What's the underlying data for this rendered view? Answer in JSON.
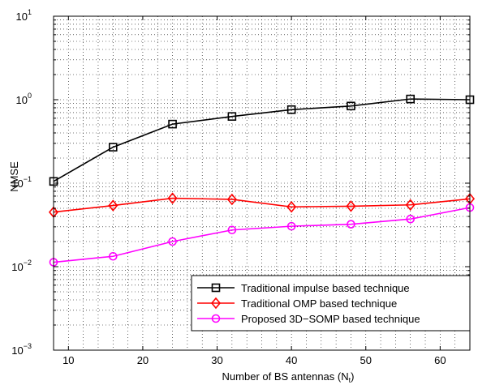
{
  "chart_data": {
    "type": "line",
    "title": "",
    "xlabel": "Number of BS antennas (N",
    "xlabel_sub": "t",
    "xlabel_close": ")",
    "ylabel": "NMSE",
    "xlim": [
      8,
      64
    ],
    "ylim": [
      0.001,
      10
    ],
    "y_scale": "log",
    "grid": "on (dotted, major and minor)",
    "legend_position": "bottom-right",
    "x_ticks": [
      10,
      20,
      30,
      40,
      50,
      60
    ],
    "x_tick_labels": [
      "10",
      "20",
      "30",
      "40",
      "50",
      "60"
    ],
    "y_tick_labels": [
      {
        "base": "10",
        "exp": "1"
      },
      {
        "base": "10",
        "exp": "0"
      },
      {
        "base": "10",
        "exp": "−1"
      },
      {
        "base": "10",
        "exp": "−2"
      },
      {
        "base": "10",
        "exp": "−3"
      }
    ],
    "y_tick_values": [
      10,
      1,
      0.1,
      0.01,
      0.001
    ],
    "x": [
      8,
      16,
      24,
      32,
      40,
      48,
      56,
      64
    ],
    "series": [
      {
        "name": "Traditional impulse based technique",
        "color": "#000000",
        "marker": "square",
        "values": [
          0.105,
          0.27,
          0.51,
          0.63,
          0.76,
          0.84,
          1.02,
          1.0
        ]
      },
      {
        "name": "Traditional OMP based technique",
        "color": "#ff0000",
        "marker": "diamond",
        "values": [
          0.045,
          0.054,
          0.066,
          0.064,
          0.052,
          0.053,
          0.055,
          0.065
        ]
      },
      {
        "name": "Proposed 3D−SOMP based technique",
        "color": "#ff00ff",
        "marker": "circle",
        "values": [
          0.0113,
          0.0133,
          0.02,
          0.0275,
          0.0305,
          0.0322,
          0.0372,
          0.051
        ]
      }
    ]
  }
}
